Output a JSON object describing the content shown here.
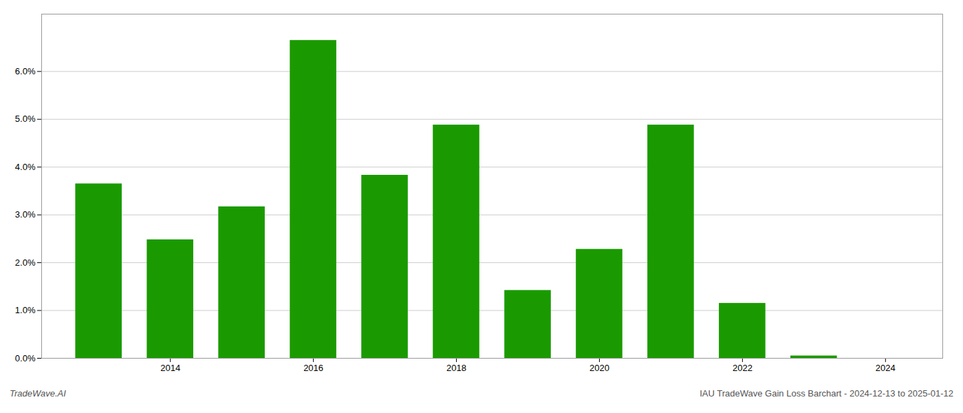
{
  "chart_data": {
    "type": "bar",
    "x": [
      2013,
      2014,
      2015,
      2016,
      2017,
      2018,
      2019,
      2020,
      2021,
      2022,
      2023
    ],
    "values": [
      0.0365,
      0.0248,
      0.0317,
      0.0665,
      0.0383,
      0.0488,
      0.0142,
      0.0228,
      0.0488,
      0.0115,
      0.0005
    ],
    "color": "#1a9a00",
    "xlim": [
      2012.2,
      2024.8
    ],
    "xticks": [
      2014,
      2016,
      2018,
      2020,
      2022,
      2024
    ],
    "ylim": [
      0,
      0.072
    ],
    "yticks": [
      {
        "value": 0.0,
        "label": "0.0%"
      },
      {
        "value": 0.01,
        "label": "1.0%"
      },
      {
        "value": 0.02,
        "label": "2.0%"
      },
      {
        "value": 0.03,
        "label": "3.0%"
      },
      {
        "value": 0.04,
        "label": "4.0%"
      },
      {
        "value": 0.05,
        "label": "5.0%"
      },
      {
        "value": 0.06,
        "label": "6.0%"
      }
    ],
    "grid": true,
    "annotations": [
      "TradeWave.AI",
      "IAU TradeWave Gain Loss Barchart - 2024-12-13 to 2025-01-12"
    ]
  }
}
